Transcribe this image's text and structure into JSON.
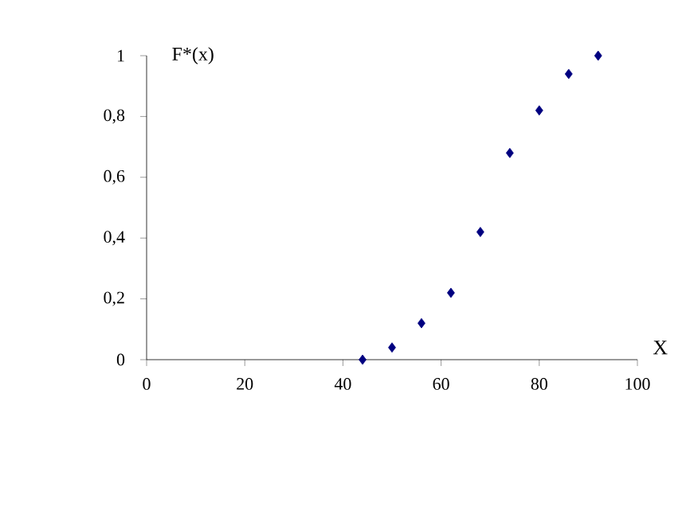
{
  "chart_data": {
    "type": "scatter",
    "xlabel": "X",
    "ylabel": "F*(x)",
    "x": [
      44,
      50,
      56,
      62,
      68,
      74,
      80,
      86,
      92
    ],
    "values": [
      0,
      0.04,
      0.12,
      0.22,
      0.42,
      0.68,
      0.82,
      0.94,
      1.0
    ],
    "color": "#000080",
    "marker": "diamond",
    "xlim": [
      0,
      100
    ],
    "xticks": [
      0,
      20,
      40,
      60,
      80,
      100
    ],
    "ylim": [
      0,
      1
    ],
    "yticks": [
      0,
      {
        "value": 0.2,
        "label": "0,2"
      },
      {
        "value": 0.4,
        "label": "0,4"
      },
      {
        "value": 0.6,
        "label": "0,6"
      },
      {
        "value": 0.8,
        "label": "0,8"
      },
      1
    ]
  }
}
